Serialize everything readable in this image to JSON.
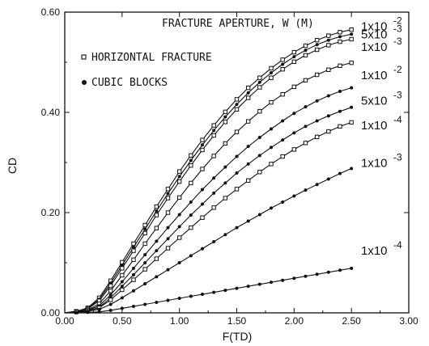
{
  "chart_data": {
    "type": "line",
    "title": "",
    "xlabel": "F(TD)",
    "ylabel": "CD",
    "xlim": [
      0,
      3
    ],
    "ylim": [
      0,
      0.6
    ],
    "x_ticks": [
      "0.00",
      "0.50",
      "1.00",
      "1.50",
      "2.00",
      "2.50",
      "3.00"
    ],
    "y_ticks": [
      "0.00",
      "0.20",
      "0.40",
      "0.60"
    ],
    "grid": false,
    "annotation": "FRACTURE APERTURE, W (M)",
    "legend": {
      "placement": "top-left",
      "entries": [
        {
          "label": "HORIZONTAL FRACTURE",
          "marker": "square-open"
        },
        {
          "label": "CUBIC BLOCKS",
          "marker": "circle-filled"
        }
      ]
    },
    "curve_labels": [
      {
        "mantissa": "1x10",
        "exponent": "-2",
        "y_at_label": 0.572
      },
      {
        "mantissa": "5x10",
        "exponent": "-3",
        "y_at_label": 0.556
      },
      {
        "mantissa": "1x10",
        "exponent": "-3",
        "y_at_label": 0.531
      },
      {
        "mantissa": "1x10",
        "exponent": "-2",
        "y_at_label": 0.474
      },
      {
        "mantissa": "5x10",
        "exponent": "-3",
        "y_at_label": 0.423
      },
      {
        "mantissa": "1x10",
        "exponent": "-4",
        "y_at_label": 0.374
      },
      {
        "mantissa": "1x10",
        "exponent": "-3",
        "y_at_label": 0.299
      },
      {
        "mantissa": "1x10",
        "exponent": "-4",
        "y_at_label": 0.124
      }
    ],
    "series": [
      {
        "marker": "square-open",
        "x": [
          0.1,
          0.2,
          0.3,
          0.4,
          0.5,
          0.6,
          0.7,
          0.8,
          0.9,
          1.0,
          1.1,
          1.2,
          1.3,
          1.4,
          1.5,
          1.6,
          1.7,
          1.8,
          1.9,
          2.0,
          2.1,
          2.2,
          2.3,
          2.4,
          2.5
        ],
        "y": [
          0.003,
          0.01,
          0.03,
          0.064,
          0.101,
          0.138,
          0.175,
          0.212,
          0.247,
          0.282,
          0.314,
          0.345,
          0.374,
          0.401,
          0.426,
          0.449,
          0.469,
          0.488,
          0.505,
          0.52,
          0.533,
          0.544,
          0.553,
          0.56,
          0.565
        ]
      },
      {
        "marker": "circle-filled",
        "x": [
          0.1,
          0.2,
          0.3,
          0.4,
          0.5,
          0.6,
          0.7,
          0.8,
          0.9,
          1.0,
          1.1,
          1.2,
          1.3,
          1.4,
          1.5,
          1.6,
          1.7,
          1.8,
          1.9,
          2.0,
          2.1,
          2.2,
          2.3,
          2.4,
          2.5
        ],
        "y": [
          0.003,
          0.009,
          0.027,
          0.059,
          0.095,
          0.131,
          0.167,
          0.203,
          0.238,
          0.272,
          0.304,
          0.335,
          0.364,
          0.391,
          0.416,
          0.439,
          0.46,
          0.479,
          0.496,
          0.511,
          0.524,
          0.535,
          0.544,
          0.551,
          0.556
        ]
      },
      {
        "marker": "square-open",
        "x": [
          0.1,
          0.2,
          0.3,
          0.4,
          0.5,
          0.6,
          0.7,
          0.8,
          0.9,
          1.0,
          1.1,
          1.2,
          1.3,
          1.4,
          1.5,
          1.6,
          1.7,
          1.8,
          1.9,
          2.0,
          2.1,
          2.2,
          2.3,
          2.4,
          2.5
        ],
        "y": [
          0.003,
          0.008,
          0.024,
          0.054,
          0.089,
          0.124,
          0.159,
          0.195,
          0.229,
          0.262,
          0.294,
          0.325,
          0.354,
          0.381,
          0.406,
          0.429,
          0.45,
          0.469,
          0.486,
          0.501,
          0.514,
          0.525,
          0.534,
          0.541,
          0.546
        ]
      },
      {
        "marker": "square-open",
        "x": [
          0.1,
          0.2,
          0.3,
          0.4,
          0.5,
          0.6,
          0.7,
          0.8,
          0.9,
          1.0,
          1.1,
          1.2,
          1.3,
          1.4,
          1.5,
          1.6,
          1.7,
          1.8,
          1.9,
          2.0,
          2.1,
          2.2,
          2.3,
          2.4,
          2.5
        ],
        "y": [
          0.002,
          0.006,
          0.018,
          0.044,
          0.075,
          0.106,
          0.138,
          0.169,
          0.2,
          0.23,
          0.259,
          0.287,
          0.313,
          0.338,
          0.361,
          0.382,
          0.402,
          0.42,
          0.436,
          0.451,
          0.464,
          0.475,
          0.485,
          0.493,
          0.499
        ]
      },
      {
        "marker": "circle-filled",
        "x": [
          0.1,
          0.2,
          0.3,
          0.4,
          0.5,
          0.6,
          0.7,
          0.8,
          0.9,
          1.0,
          1.1,
          1.2,
          1.3,
          1.4,
          1.5,
          1.6,
          1.7,
          1.8,
          1.9,
          2.0,
          2.1,
          2.2,
          2.3,
          2.4,
          2.5
        ],
        "y": [
          0.002,
          0.005,
          0.014,
          0.036,
          0.062,
          0.089,
          0.116,
          0.143,
          0.17,
          0.196,
          0.221,
          0.246,
          0.269,
          0.291,
          0.312,
          0.332,
          0.35,
          0.367,
          0.383,
          0.398,
          0.411,
          0.423,
          0.433,
          0.442,
          0.449
        ]
      },
      {
        "marker": "circle-filled",
        "x": [
          0.1,
          0.2,
          0.3,
          0.4,
          0.5,
          0.6,
          0.7,
          0.8,
          0.9,
          1.0,
          1.1,
          1.2,
          1.3,
          1.4,
          1.5,
          1.6,
          1.7,
          1.8,
          1.9,
          2.0,
          2.1,
          2.2,
          2.3,
          2.4,
          2.5
        ],
        "y": [
          0.002,
          0.004,
          0.011,
          0.03,
          0.053,
          0.076,
          0.1,
          0.124,
          0.148,
          0.172,
          0.195,
          0.217,
          0.239,
          0.259,
          0.279,
          0.297,
          0.314,
          0.33,
          0.345,
          0.359,
          0.372,
          0.383,
          0.393,
          0.402,
          0.41
        ]
      },
      {
        "marker": "square-open",
        "x": [
          0.1,
          0.2,
          0.3,
          0.4,
          0.5,
          0.6,
          0.7,
          0.8,
          0.9,
          1.0,
          1.1,
          1.2,
          1.3,
          1.4,
          1.5,
          1.6,
          1.7,
          1.8,
          1.9,
          2.0,
          2.1,
          2.2,
          2.3,
          2.4,
          2.5
        ],
        "y": [
          0.002,
          0.004,
          0.01,
          0.026,
          0.046,
          0.066,
          0.087,
          0.108,
          0.129,
          0.15,
          0.17,
          0.19,
          0.21,
          0.229,
          0.247,
          0.264,
          0.281,
          0.297,
          0.312,
          0.326,
          0.339,
          0.351,
          0.362,
          0.372,
          0.38
        ]
      },
      {
        "marker": "circle-filled",
        "x": [
          0.1,
          0.2,
          0.3,
          0.4,
          0.5,
          0.6,
          0.7,
          0.8,
          0.9,
          1.0,
          1.1,
          1.2,
          1.3,
          1.4,
          1.5,
          1.6,
          1.7,
          1.8,
          1.9,
          2.0,
          2.1,
          2.2,
          2.3,
          2.4,
          2.5
        ],
        "y": [
          0.001,
          0.003,
          0.007,
          0.017,
          0.03,
          0.044,
          0.058,
          0.072,
          0.086,
          0.1,
          0.114,
          0.128,
          0.142,
          0.156,
          0.17,
          0.183,
          0.196,
          0.209,
          0.221,
          0.233,
          0.245,
          0.256,
          0.267,
          0.278,
          0.288
        ]
      },
      {
        "marker": "circle-filled",
        "x": [
          0.1,
          0.2,
          0.3,
          0.4,
          0.5,
          0.6,
          0.7,
          0.8,
          0.9,
          1.0,
          1.1,
          1.2,
          1.3,
          1.4,
          1.5,
          1.6,
          1.7,
          1.8,
          1.9,
          2.0,
          2.1,
          2.2,
          2.3,
          2.4,
          2.5
        ],
        "y": [
          0.0,
          0.001,
          0.002,
          0.005,
          0.009,
          0.013,
          0.017,
          0.021,
          0.025,
          0.029,
          0.033,
          0.037,
          0.041,
          0.045,
          0.049,
          0.053,
          0.057,
          0.061,
          0.065,
          0.069,
          0.073,
          0.077,
          0.081,
          0.085,
          0.089
        ]
      }
    ]
  }
}
